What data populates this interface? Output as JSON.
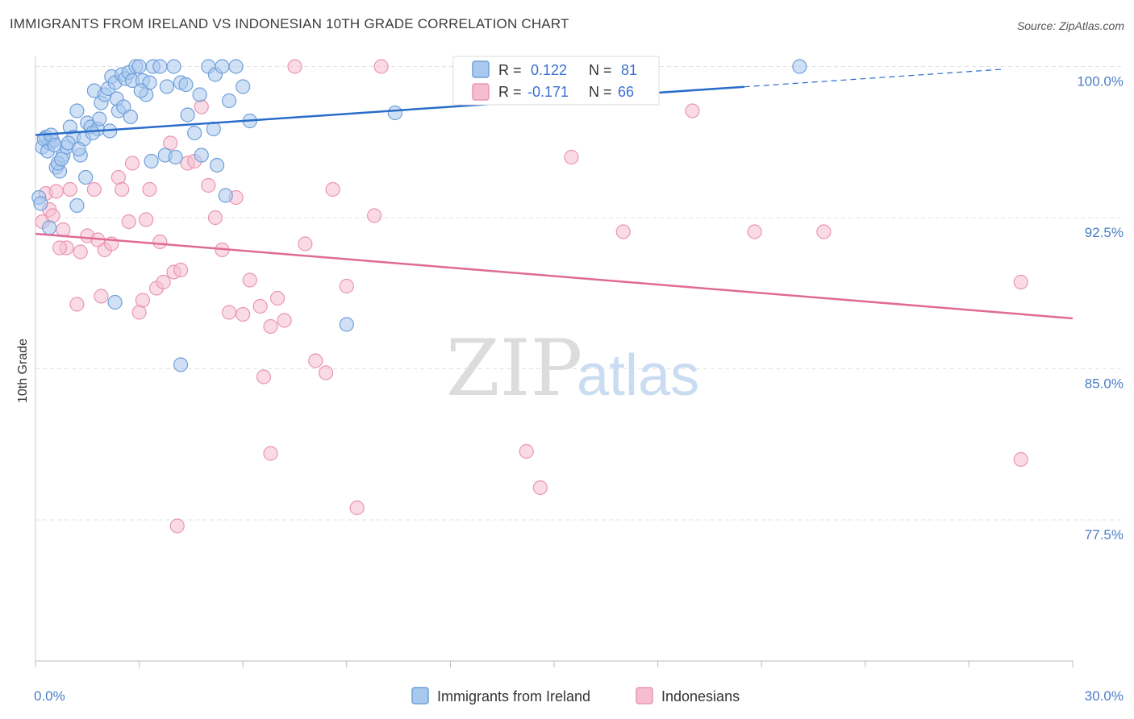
{
  "header": {
    "title": "IMMIGRANTS FROM IRELAND VS INDONESIAN 10TH GRADE CORRELATION CHART",
    "source": "Source: ZipAtlas.com"
  },
  "watermark": {
    "zip": "ZIP",
    "atlas": "atlas"
  },
  "legend": {
    "r_label": "R =",
    "n_label": "N =",
    "rows": [
      {
        "r": "0.122",
        "n": "81"
      },
      {
        "r": "-0.171",
        "n": "66"
      }
    ]
  },
  "colors": {
    "blue_fill": "#a9c8ee",
    "blue_stroke": "#6f9fd8",
    "blue_line": "#2a6cc9",
    "pink_fill": "#f6bdd0",
    "pink_stroke": "#e995b2",
    "pink_line": "#e06a96",
    "grid": "#e3e3e3",
    "tick_text": "#4a7cc7"
  },
  "chart_data": {
    "type": "scatter",
    "title": "IMMIGRANTS FROM IRELAND VS INDONESIAN 10TH GRADE CORRELATION CHART",
    "xlabel": "",
    "ylabel": "10th Grade",
    "xlim": [
      0,
      30
    ],
    "ylim": [
      70.5,
      100.5
    ],
    "x_tick_labels": [
      "0.0%",
      "30.0%"
    ],
    "y_ticks": [
      77.5,
      85.0,
      92.5,
      100.0
    ],
    "y_tick_labels": [
      "77.5%",
      "85.0%",
      "92.5%",
      "100.0%"
    ],
    "grid": "horizontal dashed",
    "legend_position": "top-center",
    "series": [
      {
        "name": "Immigrants from Ireland",
        "color": "#a9c8ee",
        "r": 0.122,
        "n": 81,
        "trend": {
          "x": [
            0,
            30
          ],
          "y": [
            96.6,
            100.1
          ],
          "solid_until_x": 20.5
        },
        "points": [
          [
            0.1,
            93.5
          ],
          [
            0.2,
            96.0
          ],
          [
            0.3,
            96.5
          ],
          [
            0.4,
            96.2
          ],
          [
            0.5,
            96.3
          ],
          [
            0.6,
            95.0
          ],
          [
            0.7,
            94.8
          ],
          [
            0.8,
            95.6
          ],
          [
            0.9,
            96.0
          ],
          [
            1.0,
            97.0
          ],
          [
            1.1,
            96.5
          ],
          [
            1.2,
            97.8
          ],
          [
            1.3,
            95.6
          ],
          [
            1.4,
            96.4
          ],
          [
            1.5,
            97.2
          ],
          [
            1.6,
            97.0
          ],
          [
            1.7,
            98.8
          ],
          [
            1.8,
            96.9
          ],
          [
            1.9,
            98.2
          ],
          [
            2.0,
            98.6
          ],
          [
            2.1,
            98.9
          ],
          [
            2.2,
            99.5
          ],
          [
            2.3,
            99.2
          ],
          [
            2.4,
            97.8
          ],
          [
            2.5,
            99.6
          ],
          [
            2.6,
            99.4
          ],
          [
            2.7,
            99.7
          ],
          [
            2.8,
            99.3
          ],
          [
            2.9,
            100.0
          ],
          [
            3.0,
            100.0
          ],
          [
            3.1,
            99.3
          ],
          [
            3.2,
            98.6
          ],
          [
            3.3,
            99.2
          ],
          [
            3.4,
            100.0
          ],
          [
            3.6,
            100.0
          ],
          [
            3.8,
            99.0
          ],
          [
            4.0,
            100.0
          ],
          [
            4.2,
            99.2
          ],
          [
            4.4,
            97.6
          ],
          [
            4.6,
            96.7
          ],
          [
            4.8,
            95.6
          ],
          [
            5.0,
            100.0
          ],
          [
            5.2,
            99.6
          ],
          [
            5.4,
            100.0
          ],
          [
            5.6,
            98.3
          ],
          [
            5.8,
            100.0
          ],
          [
            6.0,
            99.0
          ],
          [
            0.15,
            93.2
          ],
          [
            0.25,
            96.4
          ],
          [
            0.35,
            95.8
          ],
          [
            0.45,
            96.6
          ],
          [
            0.55,
            96.1
          ],
          [
            0.65,
            95.2
          ],
          [
            0.75,
            95.4
          ],
          [
            0.95,
            96.2
          ],
          [
            1.25,
            95.9
          ],
          [
            1.45,
            94.5
          ],
          [
            1.65,
            96.7
          ],
          [
            1.85,
            97.4
          ],
          [
            2.15,
            96.8
          ],
          [
            2.35,
            98.4
          ],
          [
            2.55,
            98.0
          ],
          [
            2.75,
            97.5
          ],
          [
            3.05,
            98.8
          ],
          [
            3.35,
            95.3
          ],
          [
            3.75,
            95.6
          ],
          [
            4.05,
            95.5
          ],
          [
            4.35,
            99.1
          ],
          [
            4.75,
            98.6
          ],
          [
            5.15,
            96.9
          ],
          [
            5.25,
            95.1
          ],
          [
            6.2,
            97.3
          ],
          [
            1.2,
            93.1
          ],
          [
            5.5,
            93.6
          ],
          [
            2.3,
            88.3
          ],
          [
            4.2,
            85.2
          ],
          [
            9.0,
            87.2
          ],
          [
            10.4,
            97.7
          ],
          [
            17.3,
            100.0
          ],
          [
            22.1,
            100.0
          ],
          [
            0.4,
            92.0
          ]
        ]
      },
      {
        "name": "Indonesians",
        "color": "#f6bdd0",
        "r": -0.171,
        "n": 66,
        "trend": {
          "x": [
            0,
            30
          ],
          "y": [
            91.7,
            87.5
          ]
        },
        "points": [
          [
            0.2,
            92.3
          ],
          [
            0.3,
            93.7
          ],
          [
            0.4,
            92.9
          ],
          [
            0.5,
            92.6
          ],
          [
            0.6,
            93.8
          ],
          [
            0.8,
            91.9
          ],
          [
            0.9,
            91.0
          ],
          [
            1.0,
            93.9
          ],
          [
            1.2,
            88.2
          ],
          [
            1.3,
            90.8
          ],
          [
            1.5,
            91.6
          ],
          [
            1.7,
            93.9
          ],
          [
            1.9,
            88.6
          ],
          [
            2.0,
            90.9
          ],
          [
            2.2,
            91.2
          ],
          [
            2.4,
            94.5
          ],
          [
            2.5,
            93.9
          ],
          [
            2.7,
            92.3
          ],
          [
            2.8,
            95.2
          ],
          [
            3.0,
            87.8
          ],
          [
            3.2,
            92.4
          ],
          [
            3.3,
            93.9
          ],
          [
            3.5,
            89.0
          ],
          [
            3.6,
            91.3
          ],
          [
            3.7,
            89.3
          ],
          [
            3.9,
            96.2
          ],
          [
            4.0,
            89.8
          ],
          [
            4.2,
            89.9
          ],
          [
            4.4,
            95.2
          ],
          [
            4.6,
            95.3
          ],
          [
            4.8,
            98.0
          ],
          [
            5.0,
            94.1
          ],
          [
            5.2,
            92.5
          ],
          [
            5.4,
            90.9
          ],
          [
            5.6,
            87.8
          ],
          [
            5.8,
            93.5
          ],
          [
            6.0,
            87.7
          ],
          [
            6.2,
            89.4
          ],
          [
            6.5,
            88.1
          ],
          [
            6.8,
            87.1
          ],
          [
            7.0,
            88.5
          ],
          [
            7.2,
            87.4
          ],
          [
            7.5,
            100.0
          ],
          [
            7.8,
            91.2
          ],
          [
            8.1,
            85.4
          ],
          [
            8.4,
            84.8
          ],
          [
            8.6,
            93.9
          ],
          [
            9.0,
            89.1
          ],
          [
            9.8,
            92.6
          ],
          [
            10.0,
            100.0
          ],
          [
            14.6,
            79.1
          ],
          [
            15.5,
            95.5
          ],
          [
            17.0,
            91.8
          ],
          [
            19.0,
            97.8
          ],
          [
            20.8,
            91.8
          ],
          [
            22.8,
            91.8
          ],
          [
            28.5,
            89.3
          ],
          [
            28.5,
            80.5
          ],
          [
            0.7,
            91.0
          ],
          [
            1.8,
            91.4
          ],
          [
            3.1,
            88.4
          ],
          [
            4.1,
            77.2
          ],
          [
            6.6,
            84.6
          ],
          [
            6.8,
            80.8
          ],
          [
            9.3,
            78.1
          ],
          [
            14.2,
            80.9
          ]
        ]
      }
    ]
  },
  "bottom_legend": {
    "items": [
      "Immigrants from Ireland",
      "Indonesians"
    ]
  }
}
